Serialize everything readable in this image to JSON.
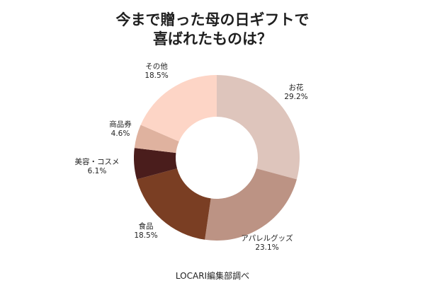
{
  "chart_data": {
    "type": "pie",
    "donut": true,
    "title_lines": [
      "今まで贈った母の日ギフトで",
      "喜ばれたものは？"
    ],
    "source": "LOCARI編集部調べ",
    "unit": "%",
    "slices": [
      {
        "label": "お花",
        "value": 29.2,
        "display": "29.2%",
        "color": "#dec5bc"
      },
      {
        "label": "アパレルグッズ",
        "value": 23.1,
        "display": "23.1%",
        "color": "#bc9384"
      },
      {
        "label": "食品",
        "value": 18.5,
        "display": "18.5%",
        "color": "#7a3e23"
      },
      {
        "label": "美容・コスメ",
        "value": 6.1,
        "display": "6.1%",
        "color": "#4a1d1c"
      },
      {
        "label": "商品券",
        "value": 4.6,
        "display": "4.6%",
        "color": "#dfb29f"
      },
      {
        "label": "その他",
        "value": 18.5,
        "display": "18.5%",
        "color": "#fdd5c6"
      }
    ]
  }
}
